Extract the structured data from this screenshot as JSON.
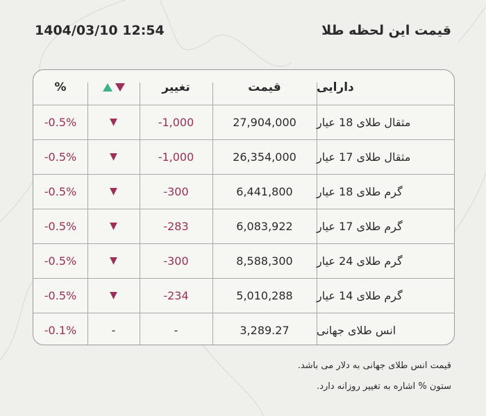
{
  "header": {
    "title": "قیمت این لحظه طلا",
    "datetime": "1404/03/10 12:54"
  },
  "table": {
    "columns": [
      "دارایی",
      "قیمت",
      "تغییر",
      "%"
    ],
    "rows": [
      [
        "مثقال طلای 18 عیار",
        "27,904,000",
        "-1,000",
        "▼",
        "-0.5%"
      ],
      [
        "مثقال طلای 17 عیار",
        "26,354,000",
        "-1,000",
        "▼",
        "-0.5%"
      ],
      [
        "گرم طلای 18 عیار",
        "6,441,800",
        "-300",
        "▼",
        "-0.5%"
      ],
      [
        "گرم طلای 17 عیار",
        "6,083,922",
        "-283",
        "▼",
        "-0.5%"
      ],
      [
        "گرم طلای 24 عیار",
        "8,588,300",
        "-300",
        "▼",
        "-0.5%"
      ],
      [
        "گرم طلای 14 عیار",
        "5,010,288",
        "-234",
        "▼",
        "-0.5%"
      ],
      [
        "انس طلای جهانی",
        "3,289.27",
        "-",
        "-",
        "-0.1%"
      ]
    ]
  },
  "notes": [
    "قیمت انس طلای جهانی به دلار می باشد.",
    "ستون % اشاره به تغییر روزانه دارد."
  ]
}
